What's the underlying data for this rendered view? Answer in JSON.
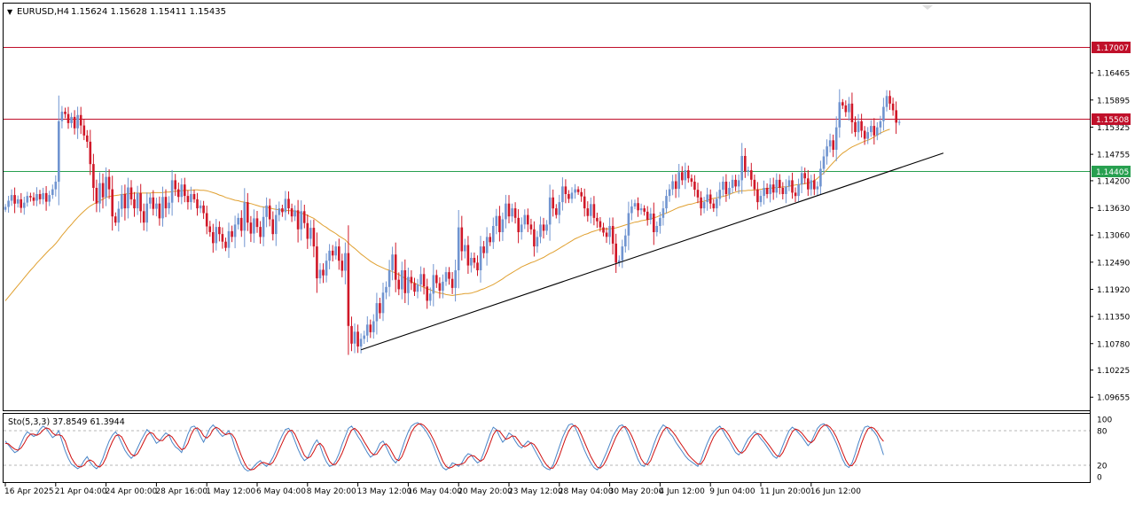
{
  "header": {
    "menu_arrow": "▼",
    "symbol_timeframe": "EURUSD,H4",
    "ohlc": "1.15624 1.15628 1.15411 1.15435"
  },
  "oscillator": {
    "label": "Sto(5,3,3) 37.8549 61.3944",
    "levels": [
      80,
      20
    ],
    "axis_labels": [
      "100",
      "80",
      "20",
      "0"
    ],
    "main_color": "#4a86c8",
    "signal_color": "#d01010",
    "main_values": [
      62,
      55,
      48,
      42,
      45,
      58,
      70,
      78,
      74,
      70,
      73,
      82,
      88,
      84,
      76,
      68,
      72,
      80,
      62,
      45,
      32,
      22,
      18,
      14,
      18,
      28,
      35,
      25,
      18,
      14,
      20,
      32,
      48,
      62,
      72,
      78,
      70,
      58,
      46,
      38,
      32,
      38,
      50,
      62,
      72,
      82,
      76,
      68,
      58,
      62,
      70,
      76,
      72,
      60,
      52,
      48,
      42,
      58,
      74,
      86,
      88,
      82,
      70,
      60,
      72,
      84,
      90,
      84,
      76,
      70,
      74,
      80,
      68,
      50,
      36,
      22,
      14,
      10,
      12,
      18,
      24,
      28,
      22,
      18,
      24,
      34,
      46,
      60,
      72,
      82,
      84,
      76,
      62,
      48,
      36,
      28,
      32,
      44,
      56,
      64,
      54,
      38,
      26,
      18,
      20,
      28,
      40,
      56,
      70,
      84,
      88,
      80,
      70,
      62,
      52,
      42,
      34,
      38,
      46,
      58,
      62,
      52,
      40,
      30,
      24,
      32,
      48,
      64,
      78,
      88,
      92,
      94,
      90,
      84,
      76,
      66,
      54,
      40,
      26,
      16,
      12,
      16,
      24,
      22,
      18,
      24,
      34,
      40,
      38,
      30,
      24,
      28,
      42,
      58,
      74,
      86,
      82,
      70,
      60,
      66,
      76,
      72,
      62,
      54,
      50,
      56,
      62,
      58,
      48,
      38,
      28,
      18,
      14,
      12,
      20,
      36,
      52,
      68,
      80,
      90,
      92,
      86,
      74,
      60,
      46,
      34,
      24,
      16,
      12,
      18,
      30,
      42,
      56,
      70,
      80,
      88,
      90,
      84,
      72,
      58,
      44,
      30,
      20,
      18,
      26,
      40,
      56,
      70,
      82,
      90,
      86,
      76,
      70,
      60,
      52,
      44,
      36,
      30,
      26,
      22,
      18,
      28,
      44,
      58,
      70,
      78,
      84,
      88,
      80,
      70,
      62,
      52,
      42,
      38,
      44,
      56,
      66,
      72,
      78,
      74,
      66,
      60,
      52,
      44,
      36,
      32,
      40,
      54,
      68,
      80,
      86,
      82,
      76,
      70,
      62,
      54,
      60,
      72,
      84,
      90,
      92,
      88,
      80,
      70,
      58,
      44,
      30,
      20,
      16,
      24,
      40,
      58,
      74,
      86,
      88,
      84,
      78,
      70,
      55,
      37.8549
    ],
    "signal_values": [
      58,
      57,
      52,
      48,
      46,
      50,
      58,
      68,
      74,
      74,
      72,
      75,
      81,
      85,
      83,
      76,
      72,
      73,
      71,
      62,
      46,
      33,
      24,
      18,
      17,
      20,
      27,
      29,
      26,
      19,
      17,
      22,
      33,
      48,
      61,
      71,
      73,
      69,
      58,
      47,
      39,
      36,
      40,
      50,
      61,
      72,
      77,
      75,
      67,
      63,
      63,
      69,
      73,
      69,
      61,
      53,
      47,
      49,
      58,
      73,
      83,
      85,
      80,
      71,
      67,
      72,
      82,
      86,
      83,
      77,
      73,
      75,
      74,
      66,
      51,
      36,
      24,
      15,
      12,
      13,
      18,
      23,
      25,
      23,
      21,
      25,
      35,
      47,
      59,
      71,
      79,
      81,
      74,
      62,
      49,
      37,
      32,
      35,
      44,
      55,
      58,
      52,
      39,
      27,
      21,
      22,
      30,
      41,
      55,
      70,
      81,
      84,
      79,
      71,
      61,
      52,
      43,
      38,
      39,
      47,
      55,
      57,
      51,
      41,
      31,
      28,
      35,
      48,
      63,
      77,
      86,
      91,
      92,
      89,
      83,
      75,
      65,
      53,
      40,
      27,
      18,
      15,
      17,
      21,
      21,
      22,
      25,
      33,
      37,
      36,
      31,
      27,
      31,
      43,
      58,
      73,
      81,
      79,
      72,
      65,
      67,
      71,
      70,
      63,
      55,
      52,
      55,
      59,
      56,
      48,
      38,
      28,
      20,
      15,
      15,
      23,
      36,
      52,
      67,
      79,
      87,
      89,
      84,
      73,
      60,
      47,
      35,
      25,
      17,
      15,
      20,
      30,
      43,
      56,
      69,
      79,
      86,
      87,
      81,
      71,
      58,
      44,
      31,
      23,
      21,
      28,
      42,
      55,
      69,
      80,
      86,
      84,
      78,
      71,
      62,
      54,
      46,
      38,
      32,
      27,
      22,
      22,
      30,
      43,
      57,
      69,
      77,
      83,
      84,
      79,
      71,
      61,
      52,
      44,
      41,
      46,
      55,
      65,
      72,
      75,
      73,
      66,
      59,
      52,
      44,
      37,
      35,
      42,
      54,
      67,
      78,
      83,
      81,
      76,
      69,
      62,
      59,
      64,
      75,
      84,
      89,
      90,
      86,
      79,
      69,
      56,
      42,
      29,
      20,
      19,
      27,
      41,
      58,
      72,
      83,
      86,
      84,
      77,
      68,
      61.3944
    ]
  },
  "chart_data": {
    "type": "candlestick",
    "symbol": "EURUSD",
    "timeframe": "H4",
    "ylim": [
      1.0938,
      1.1792
    ],
    "y_ticks": [
      "1.16465",
      "1.15895",
      "1.15325",
      "1.14755",
      "1.14200",
      "1.13630",
      "1.13060",
      "1.12490",
      "1.11920",
      "1.11350",
      "1.10780",
      "1.10225",
      "1.09655"
    ],
    "x_tick_labels": [
      "16 Apr 2025",
      "21 Apr 04:00",
      "24 Apr 00:00",
      "28 Apr 16:00",
      "1 May 12:00",
      "6 May 04:00",
      "8 May 20:00",
      "13 May 12:00",
      "16 May 04:00",
      "20 May 20:00",
      "23 May 12:00",
      "28 May 04:00",
      "30 May 20:00",
      "4 Jun 12:00",
      "9 Jun 04:00",
      "11 Jun 20:00",
      "16 Jun 12:00"
    ],
    "horizontal_lines": [
      {
        "price": 1.17007,
        "label": "1.17007",
        "color": "#c0102a"
      },
      {
        "price": 1.15508,
        "label": "1.15508",
        "color": "#c0102a"
      },
      {
        "price": 1.14405,
        "label": "1.14405",
        "color": "#28a050"
      }
    ],
    "trendline": {
      "from": {
        "bar": 113,
        "price": 1.1065
      },
      "to": {
        "bar": 298,
        "price": 1.1478
      },
      "color": "#000000"
    },
    "moving_average_color": "#e0a030",
    "up_color": "#7094d0",
    "down_color": "#d01828",
    "closes": [
      1.1365,
      1.1378,
      1.139,
      1.1372,
      1.1381,
      1.1363,
      1.1374,
      1.1388,
      1.1385,
      1.1378,
      1.1392,
      1.1381,
      1.1394,
      1.1376,
      1.139,
      1.1402,
      1.1418,
      1.1545,
      1.1565,
      1.156,
      1.1541,
      1.1554,
      1.153,
      1.1558,
      1.1536,
      1.1515,
      1.1502,
      1.1455,
      1.1405,
      1.1372,
      1.1415,
      1.1385,
      1.1428,
      1.1402,
      1.1345,
      1.1332,
      1.1361,
      1.1392,
      1.1362,
      1.1406,
      1.1381,
      1.1362,
      1.1394,
      1.1356,
      1.1332,
      1.1372,
      1.1385,
      1.1361,
      1.1372,
      1.1341,
      1.1386,
      1.1362,
      1.1374,
      1.1421,
      1.1402,
      1.1386,
      1.1412,
      1.1388,
      1.1375,
      1.1392,
      1.1381,
      1.1362,
      1.1368,
      1.1352,
      1.1324,
      1.1312,
      1.1289,
      1.1323,
      1.1308,
      1.1292,
      1.1279,
      1.1314,
      1.1302,
      1.1328,
      1.1342,
      1.1315,
      1.1375,
      1.1332,
      1.1309,
      1.1341,
      1.1323,
      1.1302,
      1.1344,
      1.1368,
      1.1339,
      1.1308,
      1.1348,
      1.1362,
      1.1354,
      1.1382,
      1.1362,
      1.1345,
      1.1358,
      1.1318,
      1.1356,
      1.1331,
      1.1298,
      1.1321,
      1.1282,
      1.1215,
      1.1233,
      1.1221,
      1.1252,
      1.1273,
      1.1263,
      1.1282,
      1.1252,
      1.1231,
      1.1268,
      1.1115,
      1.1078,
      1.1103,
      1.1072,
      1.1088,
      1.1095,
      1.1118,
      1.1102,
      1.1125,
      1.1163,
      1.1142,
      1.1185,
      1.1197,
      1.1232,
      1.1265,
      1.1212,
      1.1192,
      1.1232,
      1.1184,
      1.1218,
      1.1205,
      1.1187,
      1.1202,
      1.1224,
      1.1198,
      1.1168,
      1.1183,
      1.1222,
      1.1205,
      1.1189,
      1.1208,
      1.1228,
      1.1214,
      1.1195,
      1.1232,
      1.1322,
      1.1272,
      1.1285,
      1.1242,
      1.1258,
      1.1248,
      1.1232,
      1.1282,
      1.1268,
      1.1302,
      1.1291,
      1.1325,
      1.1346,
      1.1312,
      1.1339,
      1.1372,
      1.1345,
      1.1362,
      1.1342,
      1.1312,
      1.1328,
      1.1348,
      1.1328,
      1.1318,
      1.1282,
      1.1302,
      1.1328,
      1.1315,
      1.1328,
      1.1385,
      1.1362,
      1.1348,
      1.1375,
      1.1408,
      1.1392,
      1.1382,
      1.1395,
      1.1402,
      1.1396,
      1.1387,
      1.1362,
      1.1346,
      1.1371,
      1.1342,
      1.1335,
      1.1322,
      1.1311,
      1.1302,
      1.1325,
      1.1288,
      1.1248,
      1.1253,
      1.1282,
      1.1305,
      1.1352,
      1.1366,
      1.1373,
      1.1358,
      1.1362,
      1.1355,
      1.1338,
      1.1351,
      1.1312,
      1.1325,
      1.1342,
      1.1362,
      1.1388,
      1.1402,
      1.1419,
      1.1403,
      1.1438,
      1.1421,
      1.1442,
      1.1425,
      1.1418,
      1.1401,
      1.1385,
      1.1362,
      1.1375,
      1.1391,
      1.1372,
      1.1362,
      1.1382,
      1.1401,
      1.1418,
      1.1392,
      1.1405,
      1.1422,
      1.1408,
      1.1421,
      1.1472,
      1.1439,
      1.1442,
      1.1422,
      1.1402,
      1.1375,
      1.1388,
      1.1405,
      1.1392,
      1.1412,
      1.1395,
      1.1422,
      1.1405,
      1.1392,
      1.1408,
      1.1421,
      1.1395,
      1.1388,
      1.1412,
      1.1436,
      1.1425,
      1.1402,
      1.1421,
      1.1402,
      1.1408,
      1.1445,
      1.1471,
      1.1492,
      1.1505,
      1.1485,
      1.1532,
      1.1585,
      1.1578,
      1.1564,
      1.1582,
      1.1543,
      1.1522,
      1.1545,
      1.1525,
      1.1508,
      1.1522,
      1.1535,
      1.1515,
      1.1532,
      1.1545,
      1.1575,
      1.1598,
      1.1582,
      1.1568,
      1.1542,
      1.15435
    ],
    "ma_values": [
      1.1168,
      1.1176,
      1.1184,
      1.1192,
      1.12,
      1.1208,
      1.1216,
      1.1224,
      1.1232,
      1.1239,
      1.1247,
      1.1254,
      1.1261,
      1.1268,
      1.1275,
      1.1281,
      1.1288,
      1.1296,
      1.1305,
      1.1313,
      1.1321,
      1.1328,
      1.1336,
      1.1343,
      1.135,
      1.1356,
      1.1362,
      1.1367,
      1.1371,
      1.1374,
      1.1378,
      1.1381,
      1.1385,
      1.1387,
      1.1388,
      1.1389,
      1.139,
      1.1391,
      1.1392,
      1.1393,
      1.1393,
      1.1394,
      1.1394,
      1.1394,
      1.1394,
      1.1394,
      1.1394,
      1.1395,
      1.1395,
      1.1395,
      1.1395,
      1.1396,
      1.1396,
      1.1397,
      1.1398,
      1.1398,
      1.1399,
      1.14,
      1.14,
      1.14,
      1.1401,
      1.1401,
      1.14,
      1.14,
      1.1399,
      1.1397,
      1.1395,
      1.1393,
      1.139,
      1.1388,
      1.1385,
      1.1383,
      1.1381,
      1.1379,
      1.1378,
      1.1376,
      1.1375,
      1.1373,
      1.1372,
      1.137,
      1.1368,
      1.1366,
      1.1365,
      1.1364,
      1.1363,
      1.1361,
      1.136,
      1.1359,
      1.1358,
      1.1358,
      1.1357,
      1.1357,
      1.1356,
      1.1354,
      1.1352,
      1.135,
      1.1347,
      1.1344,
      1.1341,
      1.1336,
      1.1331,
      1.1326,
      1.1322,
      1.1317,
      1.1313,
      1.1309,
      1.1304,
      1.13,
      1.1296,
      1.1289,
      1.1283,
      1.1278,
      1.1272,
      1.1266,
      1.1261,
      1.1256,
      1.1251,
      1.1247,
      1.1243,
      1.124,
      1.1237,
      1.1234,
      1.1232,
      1.1229,
      1.1226,
      1.1223,
      1.1219,
      1.1215,
      1.1212,
      1.1208,
      1.1205,
      1.1202,
      1.1199,
      1.1196,
      1.1193,
      1.1191,
      1.1188,
      1.1186,
      1.1184,
      1.1183,
      1.1181,
      1.118,
      1.1179,
      1.118,
      1.1181,
      1.1182,
      1.1183,
      1.1183,
      1.1184,
      1.1186,
      1.1188,
      1.1191,
      1.1193,
      1.1196,
      1.1199,
      1.1202,
      1.1206,
      1.121,
      1.1214,
      1.1219,
      1.1223,
      1.1227,
      1.1231,
      1.1235,
      1.1239,
      1.1242,
      1.1245,
      1.1248,
      1.125,
      1.1253,
      1.1256,
      1.1259,
      1.1263,
      1.1267,
      1.127,
      1.1274,
      1.1278,
      1.1282,
      1.1286,
      1.129,
      1.1294,
      1.1298,
      1.1301,
      1.1304,
      1.1307,
      1.1309,
      1.1312,
      1.1314,
      1.1316,
      1.1318,
      1.1319,
      1.1319,
      1.1319,
      1.132,
      1.1321,
      1.1323,
      1.1325,
      1.1327,
      1.1329,
      1.1331,
      1.1333,
      1.1334,
      1.1336,
      1.1337,
      1.1338,
      1.134,
      1.1342,
      1.1344,
      1.1347,
      1.135,
      1.1352,
      1.1355,
      1.1358,
      1.1361,
      1.1364,
      1.1366,
      1.1368,
      1.137,
      1.1371,
      1.1373,
      1.1375,
      1.1376,
      1.1377,
      1.1379,
      1.1381,
      1.1383,
      1.1384,
      1.1386,
      1.1387,
      1.1389,
      1.1391,
      1.1394,
      1.1396,
      1.1398,
      1.1399,
      1.1399,
      1.14,
      1.14,
      1.1401,
      1.1401,
      1.1402,
      1.1403,
      1.1404,
      1.1404,
      1.1405,
      1.1406,
      1.1406,
      1.1407,
      1.1407,
      1.1408,
      1.141,
      1.1411,
      1.1412,
      1.1413,
      1.1414,
      1.1415,
      1.1417,
      1.142,
      1.1425,
      1.1431,
      1.1436,
      1.1443,
      1.1451,
      1.1458,
      1.1465,
      1.1472,
      1.1478,
      1.1482,
      1.1487,
      1.1491,
      1.1494,
      1.1497,
      1.15,
      1.1503,
      1.1505,
      1.1508,
      1.1512,
      1.1516,
      1.152,
      1.1523,
      1.1526,
      1.1528
    ]
  }
}
